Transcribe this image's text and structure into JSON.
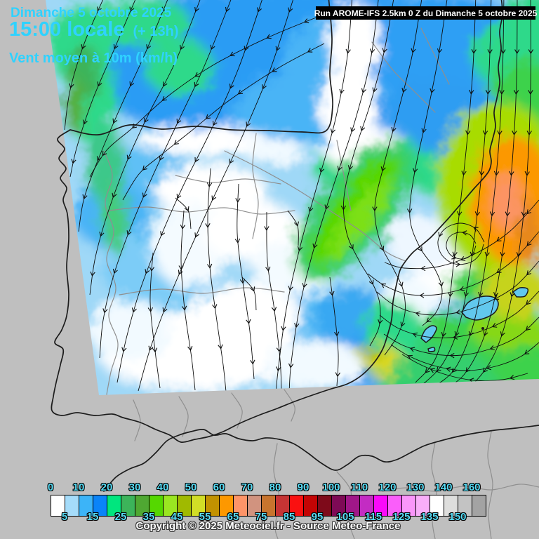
{
  "header": {
    "date_line": "Dimanche 5 octobre 2025",
    "time_line": "15:00 locale",
    "time_offset": "(+ 13h)",
    "variable_line": "Vent moyen à 10m (km/h)"
  },
  "run_banner": {
    "text": "Run AROME-IFS 2.5km 0 Z du Dimanche 5 octobre 2025"
  },
  "footer": {
    "copyright": "Copyright © 2025 Meteociel.fr - Source Meteo-France"
  },
  "legend": {
    "unit": "km/h",
    "top_labels": [
      "0",
      "10",
      "20",
      "30",
      "40",
      "50",
      "60",
      "70",
      "80",
      "90",
      "100",
      "110",
      "120",
      "130",
      "140",
      "160"
    ],
    "bottom_labels": [
      "5",
      "15",
      "25",
      "35",
      "45",
      "55",
      "65",
      "75",
      "85",
      "95",
      "105",
      "115",
      "125",
      "135",
      "150"
    ],
    "cell_colors": [
      "#ffffff",
      "#a5dcfa",
      "#3cb4f8",
      "#0a84f8",
      "#00e67e",
      "#3cb45a",
      "#4fa832",
      "#55d800",
      "#9ae621",
      "#a0ba00",
      "#d2de26",
      "#c29200",
      "#fd9800",
      "#fd9468",
      "#d1937f",
      "#c8742e",
      "#c63434",
      "#fa1010",
      "#c40404",
      "#7e0a1a",
      "#7e0a55",
      "#a01788",
      "#c32cc3",
      "#fa0afa",
      "#fa5efa",
      "#fa96fa",
      "#f9aef9",
      "#ffffff",
      "#dededd",
      "#c3c3c3",
      "#a3a3a3"
    ]
  },
  "colors": {
    "title_fill": "#2fd2ff",
    "title_outline": "#1531e0",
    "background_gray": "#bfbfbf",
    "banner_bg": "#000000",
    "banner_text": "#ffffff",
    "legend_number": "#57dcf5",
    "coastline": "#1c1c1c",
    "border_gray": "#8f8f8f"
  }
}
